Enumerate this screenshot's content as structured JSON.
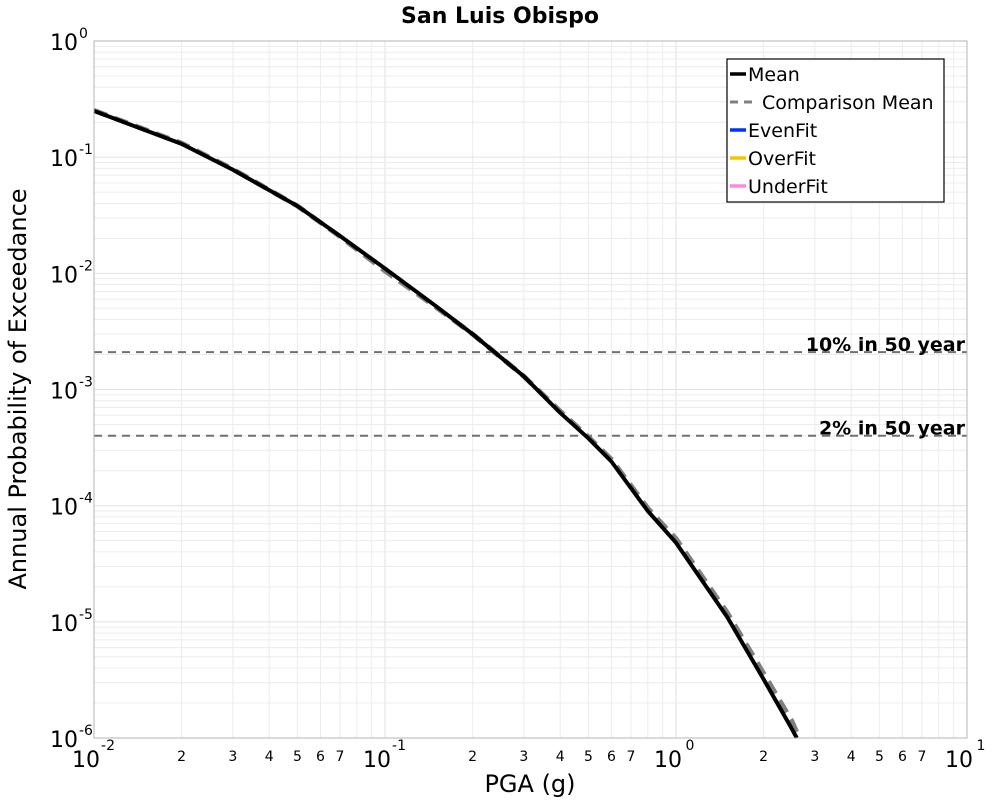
{
  "chart_data": {
    "type": "line",
    "title": "San Luis Obispo",
    "xlabel": "PGA (g)",
    "ylabel": "Annual Probability of Exceedance",
    "x_scale": "log",
    "y_scale": "log",
    "xlim": [
      0.01,
      10
    ],
    "ylim": [
      1e-06,
      1
    ],
    "grid": true,
    "legend_position": "top-right",
    "x_major_ticks": [
      {
        "value": 0.01,
        "base": "10",
        "exp": "-2"
      },
      {
        "value": 0.1,
        "base": "10",
        "exp": "-1"
      },
      {
        "value": 1,
        "base": "10",
        "exp": "0"
      },
      {
        "value": 10,
        "base": "10",
        "exp": "1"
      }
    ],
    "x_minor_tick_labels": [
      "2",
      "3",
      "4",
      "5",
      "6",
      "7"
    ],
    "y_major_ticks": [
      {
        "value": 1,
        "base": "10",
        "exp": "0"
      },
      {
        "value": 0.1,
        "base": "10",
        "exp": "-1"
      },
      {
        "value": 0.01,
        "base": "10",
        "exp": "-2"
      },
      {
        "value": 0.001,
        "base": "10",
        "exp": "-3"
      },
      {
        "value": 0.0001,
        "base": "10",
        "exp": "-4"
      },
      {
        "value": 1e-05,
        "base": "10",
        "exp": "-5"
      },
      {
        "value": 1e-06,
        "base": "10",
        "exp": "-6"
      }
    ],
    "series": [
      {
        "name": "Mean",
        "color": "#000000",
        "style": "solid",
        "x": [
          0.01,
          0.02,
          0.03,
          0.05,
          0.07,
          0.1,
          0.15,
          0.2,
          0.3,
          0.4,
          0.5,
          0.6,
          0.8,
          1.0,
          1.5,
          2.0,
          2.5,
          2.6
        ],
        "y": [
          0.25,
          0.13,
          0.078,
          0.038,
          0.021,
          0.011,
          0.0052,
          0.003,
          0.0013,
          0.00063,
          0.00038,
          0.00024,
          9e-05,
          4.8e-05,
          1.1e-05,
          3.2e-06,
          1.2e-06,
          1e-06
        ]
      },
      {
        "name": "Comparison Mean",
        "color": "#808080",
        "style": "dashed",
        "x": [
          0.01,
          0.02,
          0.03,
          0.05,
          0.07,
          0.1,
          0.15,
          0.2,
          0.3,
          0.4,
          0.5,
          0.6,
          0.8,
          1.0,
          1.5,
          2.0,
          2.5,
          2.65
        ],
        "y": [
          0.252,
          0.132,
          0.079,
          0.038,
          0.0208,
          0.0105,
          0.0051,
          0.003,
          0.0013,
          0.00065,
          0.00039,
          0.00025,
          9.5e-05,
          5.2e-05,
          1.2e-05,
          3.6e-06,
          1.4e-06,
          1e-06
        ]
      },
      {
        "name": "EvenFit",
        "color": "#0033ff",
        "style": "solid",
        "x": [],
        "y": []
      },
      {
        "name": "OverFit",
        "color": "#f0c800",
        "style": "solid",
        "x": [],
        "y": []
      },
      {
        "name": "UnderFit",
        "color": "#ff88dd",
        "style": "solid",
        "x": [],
        "y": []
      }
    ],
    "reference_lines": [
      {
        "label": "10% in 50 year",
        "y": 0.0021
      },
      {
        "label": "2% in 50 year",
        "y": 0.0004
      }
    ]
  }
}
